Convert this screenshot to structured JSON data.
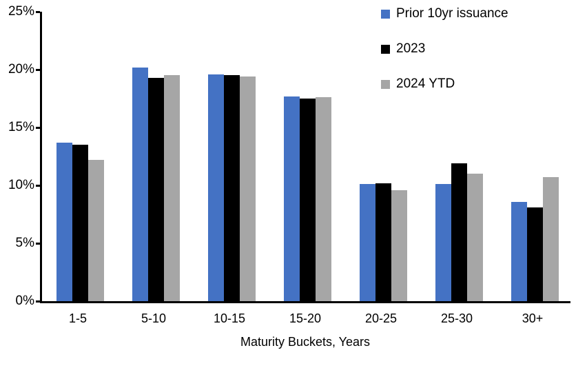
{
  "chart_data": {
    "type": "bar",
    "categories": [
      "1-5",
      "5-10",
      "10-15",
      "15-20",
      "20-25",
      "25-30",
      "30+"
    ],
    "series": [
      {
        "name": "Prior 10yr issuance",
        "color": "#4472C4",
        "values": [
          13.7,
          20.2,
          19.6,
          17.7,
          10.1,
          10.1,
          8.6
        ]
      },
      {
        "name": "2023",
        "color": "#000000",
        "values": [
          13.5,
          19.3,
          19.5,
          17.5,
          10.2,
          11.9,
          8.1
        ]
      },
      {
        "name": "2024 YTD",
        "color": "#A6A6A6",
        "values": [
          12.2,
          19.5,
          19.4,
          17.6,
          9.6,
          11.0,
          10.7
        ]
      }
    ],
    "title": "",
    "xlabel": "Maturity Buckets, Years",
    "ylabel": "",
    "ylim": [
      0,
      25
    ],
    "ytick_step": 5,
    "ytick_labels": [
      "0%",
      "5%",
      "10%",
      "15%",
      "20%",
      "25%"
    ],
    "grid": false,
    "legend_position": "top-right-inside",
    "axis_color": "#000000",
    "text_color": "#000000",
    "background": "#FFFFFF"
  }
}
